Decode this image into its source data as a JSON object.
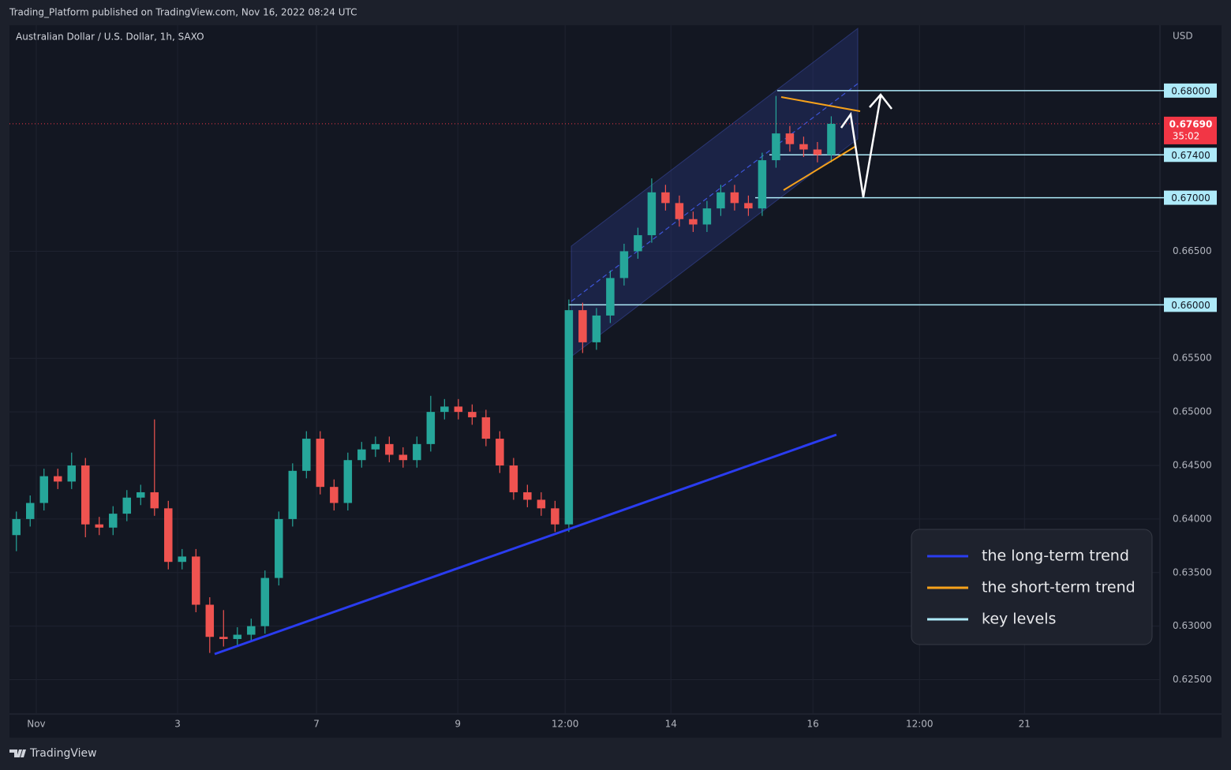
{
  "header": {
    "title": "Trading_Platform published on TradingView.com, Nov 16, 2022 08:24 UTC"
  },
  "footer": {
    "brand": "TradingView"
  },
  "chart_data": {
    "type": "candlestick",
    "title": "Australian Dollar / U.S. Dollar, 1h, SAXO",
    "y_unit": "USD",
    "x": [
      0.5,
      1.5,
      2.5,
      3.5,
      4.5,
      5.5,
      6.5,
      7.5,
      8.5,
      9.5,
      10.5,
      11.5,
      12.5,
      13.5,
      14.5,
      15.5,
      16.5,
      17.5,
      18.5,
      19.5,
      20.5,
      21.5,
      22.5,
      23.5,
      24.5,
      25.5,
      26.5,
      27.5,
      28.5,
      29.5,
      30.5,
      31.5,
      32.5,
      33.5,
      34.5,
      35.5,
      36.5,
      37.5,
      38.5,
      39.5,
      40.5,
      41.5,
      42.5,
      43.5,
      44.5,
      45.5,
      46.5,
      47.5,
      48.5,
      49.5,
      50.5,
      51.5,
      52.5,
      53.5,
      54.5,
      55.5,
      56.5,
      57.5,
      58.5,
      59.5
    ],
    "open": [
      0.6385,
      0.64,
      0.6415,
      0.644,
      0.6435,
      0.645,
      0.6395,
      0.6392,
      0.6405,
      0.642,
      0.6425,
      0.641,
      0.636,
      0.6365,
      0.632,
      0.629,
      0.6288,
      0.6292,
      0.63,
      0.6345,
      0.64,
      0.6445,
      0.6475,
      0.643,
      0.6415,
      0.6455,
      0.6465,
      0.647,
      0.646,
      0.6455,
      0.647,
      0.65,
      0.6505,
      0.65,
      0.6495,
      0.6475,
      0.645,
      0.6425,
      0.6418,
      0.641,
      0.6395,
      0.6595,
      0.6565,
      0.659,
      0.6625,
      0.665,
      0.6665,
      0.6705,
      0.6695,
      0.668,
      0.6675,
      0.669,
      0.6705,
      0.6695,
      0.669,
      0.6735,
      0.676,
      0.675,
      0.6745,
      0.674
    ],
    "high": [
      0.6407,
      0.6422,
      0.6447,
      0.6447,
      0.6462,
      0.6457,
      0.6402,
      0.6412,
      0.6427,
      0.6432,
      0.6493,
      0.6417,
      0.6372,
      0.6372,
      0.6327,
      0.6315,
      0.6299,
      0.6307,
      0.6352,
      0.6407,
      0.6452,
      0.6482,
      0.6482,
      0.6437,
      0.6462,
      0.6472,
      0.6477,
      0.6477,
      0.6467,
      0.6477,
      0.6515,
      0.6512,
      0.6512,
      0.6507,
      0.6502,
      0.6482,
      0.6457,
      0.6432,
      0.6425,
      0.6417,
      0.6605,
      0.6602,
      0.6597,
      0.6632,
      0.6657,
      0.6672,
      0.6718,
      0.6712,
      0.6702,
      0.6687,
      0.6697,
      0.6712,
      0.6712,
      0.6702,
      0.6742,
      0.6795,
      0.6767,
      0.6757,
      0.6752,
      0.6776
    ],
    "low": [
      0.637,
      0.6393,
      0.6408,
      0.6428,
      0.6428,
      0.6383,
      0.6385,
      0.6385,
      0.6398,
      0.6413,
      0.6403,
      0.6353,
      0.6353,
      0.6313,
      0.6275,
      0.6281,
      0.6281,
      0.6285,
      0.6293,
      0.6338,
      0.6393,
      0.6438,
      0.6423,
      0.6408,
      0.6408,
      0.6448,
      0.6458,
      0.6453,
      0.6448,
      0.6448,
      0.6463,
      0.6493,
      0.6493,
      0.6488,
      0.6468,
      0.6443,
      0.6418,
      0.6411,
      0.6403,
      0.6388,
      0.6388,
      0.6555,
      0.6558,
      0.6583,
      0.6618,
      0.6643,
      0.6658,
      0.6688,
      0.6673,
      0.6668,
      0.6668,
      0.6683,
      0.6688,
      0.6683,
      0.6683,
      0.6728,
      0.6743,
      0.6738,
      0.6733,
      0.6733
    ],
    "close": [
      0.64,
      0.6415,
      0.644,
      0.6435,
      0.645,
      0.6395,
      0.6392,
      0.6405,
      0.642,
      0.6425,
      0.641,
      0.636,
      0.6365,
      0.632,
      0.629,
      0.6288,
      0.6292,
      0.63,
      0.6345,
      0.64,
      0.6445,
      0.6475,
      0.643,
      0.6415,
      0.6455,
      0.6465,
      0.647,
      0.646,
      0.6455,
      0.647,
      0.65,
      0.6505,
      0.65,
      0.6495,
      0.6475,
      0.645,
      0.6425,
      0.6418,
      0.641,
      0.6395,
      0.6595,
      0.6565,
      0.659,
      0.6625,
      0.665,
      0.6665,
      0.6705,
      0.6695,
      0.668,
      0.6675,
      0.669,
      0.6705,
      0.6695,
      0.669,
      0.6735,
      0.676,
      0.675,
      0.6745,
      0.674,
      0.6769
    ],
    "up_color": "#26a69a",
    "down_color": "#ef5350",
    "xlim": [
      0,
      83.3
    ],
    "xticks": [
      {
        "value": 1.94,
        "label": "Nov"
      },
      {
        "value": 12.17,
        "label": "3"
      },
      {
        "value": 22.23,
        "label": "7"
      },
      {
        "value": 32.46,
        "label": "9"
      },
      {
        "value": 40.23,
        "label": "12:00"
      },
      {
        "value": 47.89,
        "label": "14"
      },
      {
        "value": 58.17,
        "label": "16"
      },
      {
        "value": 65.89,
        "label": "12:00"
      },
      {
        "value": 73.49,
        "label": "21"
      }
    ],
    "ylim": [
      0.6218,
      0.6861
    ],
    "yticks": [
      {
        "value": 0.625,
        "label": "0.62500"
      },
      {
        "value": 0.63,
        "label": "0.63000"
      },
      {
        "value": 0.635,
        "label": "0.63500"
      },
      {
        "value": 0.64,
        "label": "0.64000"
      },
      {
        "value": 0.645,
        "label": "0.64500"
      },
      {
        "value": 0.65,
        "label": "0.65000"
      },
      {
        "value": 0.655,
        "label": "0.65500"
      },
      {
        "value": 0.665,
        "label": "0.66500"
      }
    ],
    "grid": true,
    "key_levels": [
      {
        "value": 0.68,
        "label": "0.68000"
      },
      {
        "value": 0.674,
        "label": "0.67400"
      },
      {
        "value": 0.67,
        "label": "0.67000"
      },
      {
        "value": 0.66,
        "label": "0.66000"
      }
    ],
    "key_level_color": "#aeeaf9",
    "last_price": {
      "value": 0.6769,
      "label": "0.67690",
      "countdown": "35:02",
      "color": "#f23645"
    },
    "legend": [
      {
        "name": "the long-term trend",
        "color": "#2a3cf0"
      },
      {
        "name": "the short-term trend",
        "color": "#f7a21b"
      },
      {
        "name": "key levels",
        "color": "#aeeaf9"
      }
    ]
  }
}
